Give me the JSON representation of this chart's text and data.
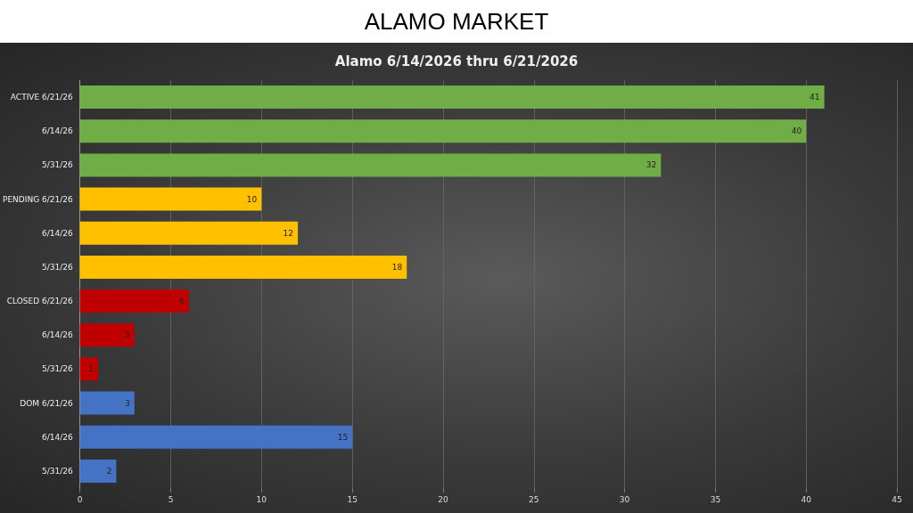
{
  "chart_data": {
    "type": "bar",
    "orientation": "horizontal",
    "title": "ALAMO MARKET",
    "subtitle": "Alamo 6/14/2026 thru 6/21/2026",
    "categories": [
      "ACTIVE 6/21/26",
      "6/14/26",
      "5/31/26",
      "PENDING 6/21/26",
      "6/14/26",
      "5/31/26",
      "CLOSED 6/21/26",
      "6/14/26",
      "5/31/26",
      "DOM 6/21/26",
      "6/14/26",
      "5/31/26"
    ],
    "values": [
      41,
      40,
      32,
      10,
      12,
      18,
      6,
      3,
      1,
      3,
      15,
      2
    ],
    "colors": [
      "#70ad47",
      "#70ad47",
      "#70ad47",
      "#ffc000",
      "#ffc000",
      "#ffc000",
      "#c00000",
      "#c00000",
      "#c00000",
      "#4472c4",
      "#4472c4",
      "#4472c4"
    ],
    "xlim": [
      0,
      45
    ],
    "xticks": [
      0,
      5,
      10,
      15,
      20,
      25,
      30,
      35,
      40,
      45
    ],
    "grid": "x",
    "data_labels": true
  }
}
